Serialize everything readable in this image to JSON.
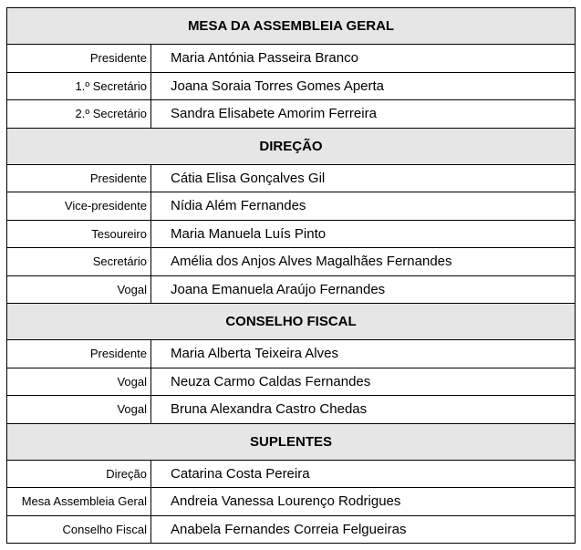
{
  "sections": [
    {
      "title": "MESA DA ASSEMBLEIA GERAL",
      "rows": [
        {
          "role": "Presidente",
          "name": "Maria Antónia Passeira Branco"
        },
        {
          "role": "1.º Secretário",
          "name": "Joana Soraia Torres Gomes Aperta"
        },
        {
          "role": "2.º Secretário",
          "name": "Sandra Elisabete Amorim Ferreira"
        }
      ]
    },
    {
      "title": "DIREÇÃO",
      "rows": [
        {
          "role": "Presidente",
          "name": "Cátia Elisa Gonçalves Gil"
        },
        {
          "role": "Vice-presidente",
          "name": "Nídia Além Fernandes"
        },
        {
          "role": "Tesoureiro",
          "name": "Maria Manuela Luís Pinto"
        },
        {
          "role": "Secretário",
          "name": "Amélia dos Anjos Alves Magalhães Fernandes"
        },
        {
          "role": "Vogal",
          "name": "Joana Emanuela Araújo Fernandes"
        }
      ]
    },
    {
      "title": "CONSELHO FISCAL",
      "rows": [
        {
          "role": "Presidente",
          "name": "Maria Alberta Teixeira Alves"
        },
        {
          "role": "Vogal",
          "name": "Neuza Carmo Caldas Fernandes"
        },
        {
          "role": "Vogal",
          "name": "Bruna Alexandra Castro Chedas"
        }
      ]
    },
    {
      "title": "SUPLENTES",
      "rows": [
        {
          "role": "Direção",
          "name": "Catarina Costa Pereira"
        },
        {
          "role": "Mesa Assembleia Geral",
          "name": "Andreia Vanessa Lourenço Rodrigues"
        },
        {
          "role": "Conselho Fiscal",
          "name": "Anabela Fernandes Correia Felgueiras"
        }
      ]
    }
  ]
}
